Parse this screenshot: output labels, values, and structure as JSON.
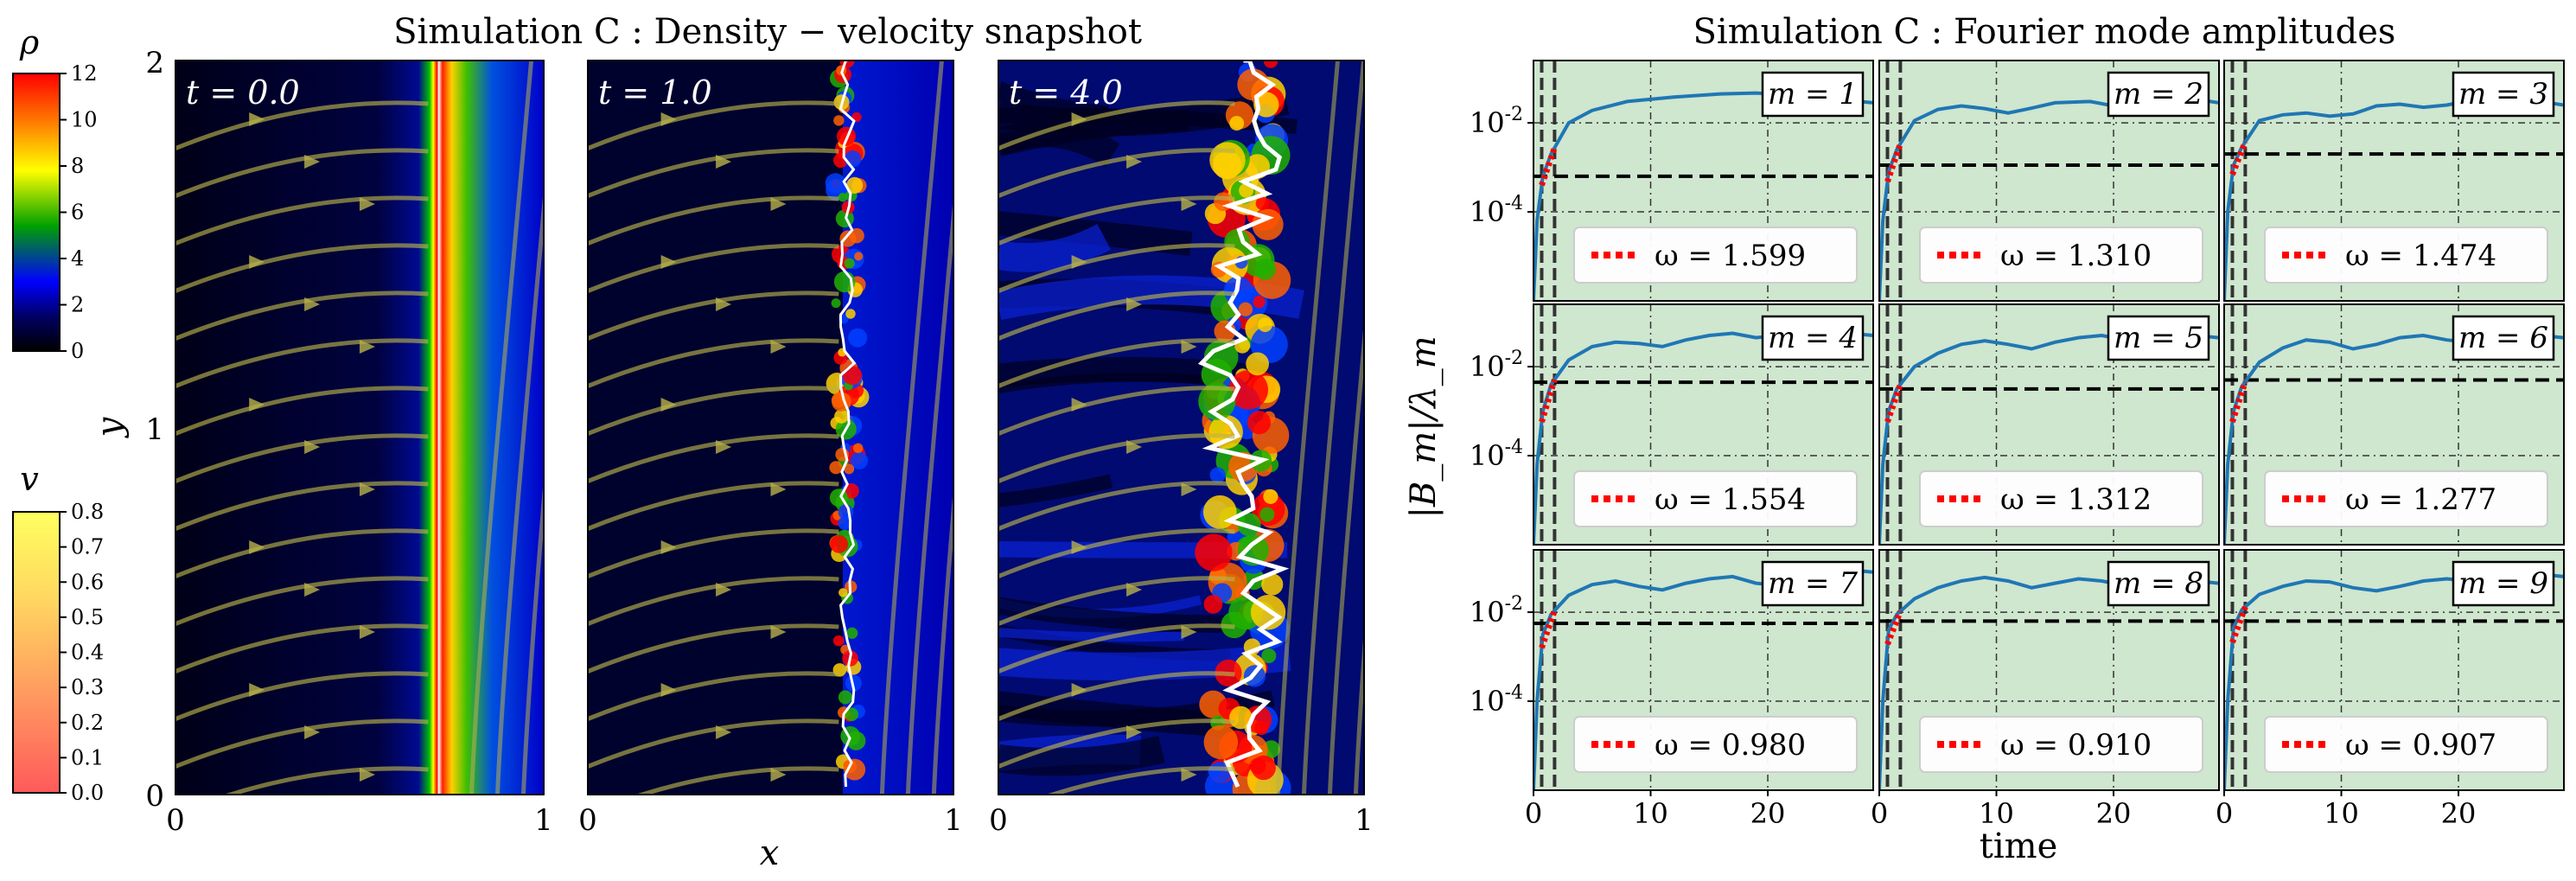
{
  "colors": {
    "panel_bg": "#cfe6cf",
    "curve": "#1f77b4",
    "fit": "#ff0000",
    "threshold": "#000000",
    "streamline": "#b8b24a",
    "interface": "#ffffff",
    "density_stops": [
      "#000000",
      "#000060",
      "#0000ff",
      "#00a000",
      "#ffff00",
      "#ff8000",
      "#ff0000"
    ],
    "velocity_stops": [
      "#ff5a5a",
      "#ff9a60",
      "#ffd860",
      "#ffff60"
    ]
  },
  "left_figure": {
    "title": "Simulation C :  Density − velocity snapshot",
    "xlabel": "x",
    "ylabel": "y",
    "x_ticks": [
      "0",
      "1"
    ],
    "y_ticks": [
      "0",
      "1",
      "2"
    ],
    "snapshots": [
      {
        "label": "t = 0.0",
        "interface_x": 0.71,
        "turbulence": 0
      },
      {
        "label": "t = 1.0",
        "interface_x": 0.71,
        "turbulence": 1
      },
      {
        "label": "t = 4.0",
        "interface_x": 0.67,
        "turbulence": 3
      }
    ],
    "colorbar_density": {
      "label": "ρ",
      "ticks": [
        "0",
        "2",
        "4",
        "6",
        "8",
        "10",
        "12"
      ],
      "range": [
        0,
        12
      ]
    },
    "colorbar_velocity": {
      "label": "v",
      "ticks": [
        "0.0",
        "0.1",
        "0.2",
        "0.3",
        "0.4",
        "0.5",
        "0.6",
        "0.7",
        "0.8"
      ],
      "range": [
        0.0,
        0.8
      ]
    }
  },
  "chart_data": {
    "type": "line",
    "title": "Simulation C :  Fourier mode amplitudes",
    "xlabel": "time",
    "ylabel": "|B_m|/λ_m",
    "xlim": [
      0,
      29
    ],
    "ylim_log10": [
      -6,
      -0.6
    ],
    "x_ticks": [
      0,
      10,
      20
    ],
    "y_ticks": [
      {
        "v": -2,
        "label": "10^-2"
      },
      {
        "v": -4,
        "label": "10^-4"
      }
    ],
    "fit_window": [
      0.7,
      1.8
    ],
    "panels": [
      {
        "mode": "m = 1",
        "omega": "ω = 1.599",
        "threshold_log": -3.2,
        "series": [
          [
            0,
            -6
          ],
          [
            0.3,
            -4.2
          ],
          [
            0.8,
            -3.2
          ],
          [
            1.5,
            -2.7
          ],
          [
            3,
            -2.0
          ],
          [
            5,
            -1.72
          ],
          [
            8,
            -1.52
          ],
          [
            12,
            -1.42
          ],
          [
            16,
            -1.35
          ],
          [
            19,
            -1.33
          ],
          [
            22,
            -1.38
          ],
          [
            25,
            -1.45
          ],
          [
            27,
            -1.5
          ],
          [
            29,
            -1.55
          ]
        ]
      },
      {
        "mode": "m = 2",
        "omega": "ω = 1.310",
        "threshold_log": -2.95,
        "series": [
          [
            0,
            -6
          ],
          [
            0.3,
            -4.2
          ],
          [
            0.8,
            -3.1
          ],
          [
            1.5,
            -2.6
          ],
          [
            3,
            -1.95
          ],
          [
            5,
            -1.7
          ],
          [
            7,
            -1.62
          ],
          [
            9,
            -1.68
          ],
          [
            11,
            -1.78
          ],
          [
            13,
            -1.67
          ],
          [
            15,
            -1.55
          ],
          [
            18,
            -1.52
          ],
          [
            20,
            -1.62
          ],
          [
            22,
            -1.52
          ],
          [
            25,
            -1.48
          ],
          [
            27,
            -1.47
          ],
          [
            29,
            -1.55
          ]
        ]
      },
      {
        "mode": "m = 3",
        "omega": "ω = 1.474",
        "threshold_log": -2.7,
        "series": [
          [
            0,
            -6
          ],
          [
            0.3,
            -4.0
          ],
          [
            0.8,
            -2.95
          ],
          [
            1.5,
            -2.55
          ],
          [
            3,
            -1.95
          ],
          [
            5,
            -1.82
          ],
          [
            7,
            -1.78
          ],
          [
            9,
            -1.85
          ],
          [
            11,
            -1.8
          ],
          [
            13,
            -1.62
          ],
          [
            15,
            -1.58
          ],
          [
            17,
            -1.65
          ],
          [
            19,
            -1.6
          ],
          [
            21,
            -1.5
          ],
          [
            23,
            -1.48
          ],
          [
            25,
            -1.5
          ],
          [
            27,
            -1.52
          ],
          [
            29,
            -1.6
          ]
        ]
      },
      {
        "mode": "m = 4",
        "omega": "ω = 1.554",
        "threshold_log": -2.35,
        "series": [
          [
            0,
            -6
          ],
          [
            0.3,
            -4.2
          ],
          [
            0.8,
            -3.0
          ],
          [
            1.5,
            -2.4
          ],
          [
            3,
            -1.85
          ],
          [
            5,
            -1.55
          ],
          [
            7,
            -1.45
          ],
          [
            9,
            -1.48
          ],
          [
            11,
            -1.55
          ],
          [
            13,
            -1.4
          ],
          [
            15,
            -1.3
          ],
          [
            17,
            -1.25
          ],
          [
            19,
            -1.35
          ],
          [
            21,
            -1.3
          ],
          [
            23,
            -1.15
          ],
          [
            25,
            -1.2
          ],
          [
            27,
            -1.25
          ],
          [
            29,
            -1.3
          ]
        ]
      },
      {
        "mode": "m = 5",
        "omega": "ω = 1.312",
        "threshold_log": -2.5,
        "series": [
          [
            0,
            -6
          ],
          [
            0.3,
            -4.2
          ],
          [
            0.8,
            -3.0
          ],
          [
            1.5,
            -2.5
          ],
          [
            3,
            -2.0
          ],
          [
            5,
            -1.7
          ],
          [
            7,
            -1.5
          ],
          [
            9,
            -1.42
          ],
          [
            11,
            -1.5
          ],
          [
            13,
            -1.6
          ],
          [
            15,
            -1.45
          ],
          [
            17,
            -1.35
          ],
          [
            19,
            -1.3
          ],
          [
            21,
            -1.4
          ],
          [
            23,
            -1.35
          ],
          [
            25,
            -1.25
          ],
          [
            27,
            -1.3
          ],
          [
            29,
            -1.35
          ]
        ]
      },
      {
        "mode": "m = 6",
        "omega": "ω = 1.277",
        "threshold_log": -2.3,
        "series": [
          [
            0,
            -6
          ],
          [
            0.3,
            -4.2
          ],
          [
            0.8,
            -3.0
          ],
          [
            1.5,
            -2.45
          ],
          [
            3,
            -1.9
          ],
          [
            5,
            -1.58
          ],
          [
            7,
            -1.4
          ],
          [
            9,
            -1.45
          ],
          [
            11,
            -1.6
          ],
          [
            13,
            -1.5
          ],
          [
            15,
            -1.35
          ],
          [
            17,
            -1.3
          ],
          [
            19,
            -1.4
          ],
          [
            21,
            -1.45
          ],
          [
            23,
            -1.3
          ],
          [
            25,
            -1.25
          ],
          [
            27,
            -1.3
          ],
          [
            29,
            -1.35
          ]
        ]
      },
      {
        "mode": "m = 7",
        "omega": "ω = 0.980",
        "threshold_log": -2.25,
        "series": [
          [
            0,
            -6
          ],
          [
            0.3,
            -4.0
          ],
          [
            0.8,
            -2.5
          ],
          [
            1.5,
            -2.05
          ],
          [
            3,
            -1.62
          ],
          [
            5,
            -1.38
          ],
          [
            7,
            -1.3
          ],
          [
            9,
            -1.42
          ],
          [
            11,
            -1.5
          ],
          [
            13,
            -1.35
          ],
          [
            15,
            -1.25
          ],
          [
            17,
            -1.2
          ],
          [
            19,
            -1.35
          ],
          [
            21,
            -1.4
          ],
          [
            23,
            -1.2
          ],
          [
            25,
            -1.0
          ],
          [
            27,
            -1.05
          ],
          [
            29,
            -1.1
          ]
        ]
      },
      {
        "mode": "m = 8",
        "omega": "ω = 0.910",
        "threshold_log": -2.2,
        "series": [
          [
            0,
            -6
          ],
          [
            0.3,
            -4.0
          ],
          [
            0.8,
            -2.4
          ],
          [
            1.5,
            -2.05
          ],
          [
            3,
            -1.7
          ],
          [
            5,
            -1.45
          ],
          [
            7,
            -1.3
          ],
          [
            9,
            -1.22
          ],
          [
            11,
            -1.3
          ],
          [
            13,
            -1.45
          ],
          [
            15,
            -1.35
          ],
          [
            17,
            -1.25
          ],
          [
            19,
            -1.3
          ],
          [
            21,
            -1.4
          ],
          [
            23,
            -1.35
          ],
          [
            25,
            -1.25
          ],
          [
            27,
            -1.3
          ],
          [
            29,
            -1.35
          ]
        ]
      },
      {
        "mode": "m = 9",
        "omega": "ω = 0.907",
        "threshold_log": -2.2,
        "series": [
          [
            0,
            -6
          ],
          [
            0.3,
            -4.0
          ],
          [
            0.8,
            -2.35
          ],
          [
            1.5,
            -1.95
          ],
          [
            3,
            -1.6
          ],
          [
            5,
            -1.42
          ],
          [
            7,
            -1.3
          ],
          [
            9,
            -1.32
          ],
          [
            11,
            -1.45
          ],
          [
            13,
            -1.52
          ],
          [
            15,
            -1.42
          ],
          [
            17,
            -1.3
          ],
          [
            19,
            -1.25
          ],
          [
            21,
            -1.3
          ],
          [
            23,
            -1.22
          ],
          [
            25,
            -1.12
          ],
          [
            27,
            -1.15
          ],
          [
            29,
            -1.2
          ]
        ]
      }
    ]
  }
}
